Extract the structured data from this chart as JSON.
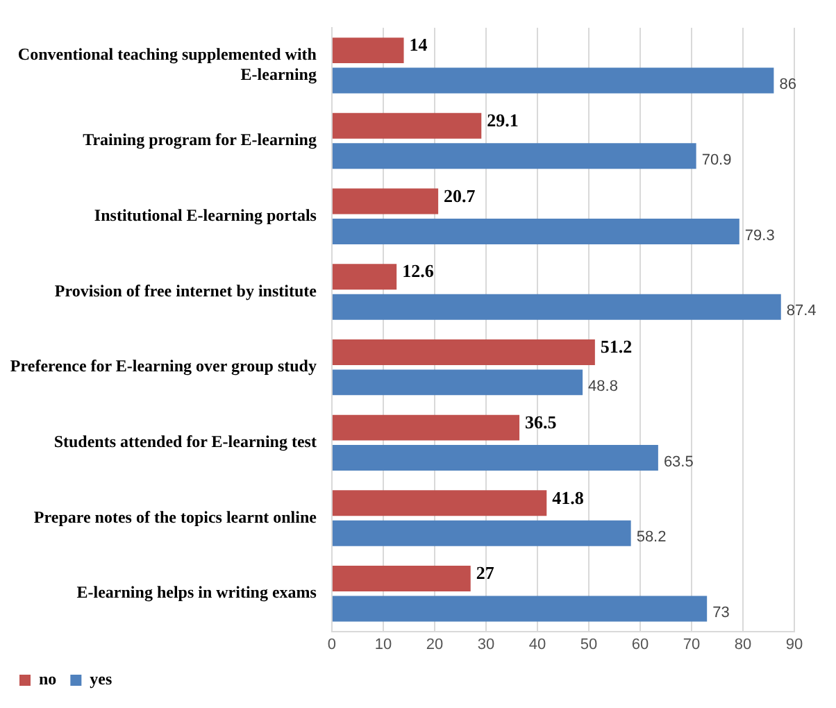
{
  "chart_data": {
    "type": "bar",
    "orientation": "horizontal",
    "categories": [
      "Conventional teaching supplemented with E-learning",
      "Training program for E-learning",
      "Institutional E-learning portals",
      "Provision of free internet by institute",
      "Preference for E-learning over group study",
      "Students attended for E-learning test",
      "Prepare notes of the topics learnt online",
      "E-learning helps in writing exams"
    ],
    "series": [
      {
        "name": "no",
        "color": "#c0504d",
        "values": [
          14,
          29.1,
          20.7,
          12.6,
          51.2,
          36.5,
          41.8,
          27
        ]
      },
      {
        "name": "yes",
        "color": "#4f81bd",
        "values": [
          86,
          70.9,
          79.3,
          87.4,
          48.8,
          63.5,
          58.2,
          73
        ]
      }
    ],
    "xlim": [
      0,
      90
    ],
    "xticks": [
      0,
      10,
      20,
      30,
      40,
      50,
      60,
      70,
      80,
      90
    ],
    "grid": "x",
    "legend": "bottom left",
    "data_labels": true
  }
}
